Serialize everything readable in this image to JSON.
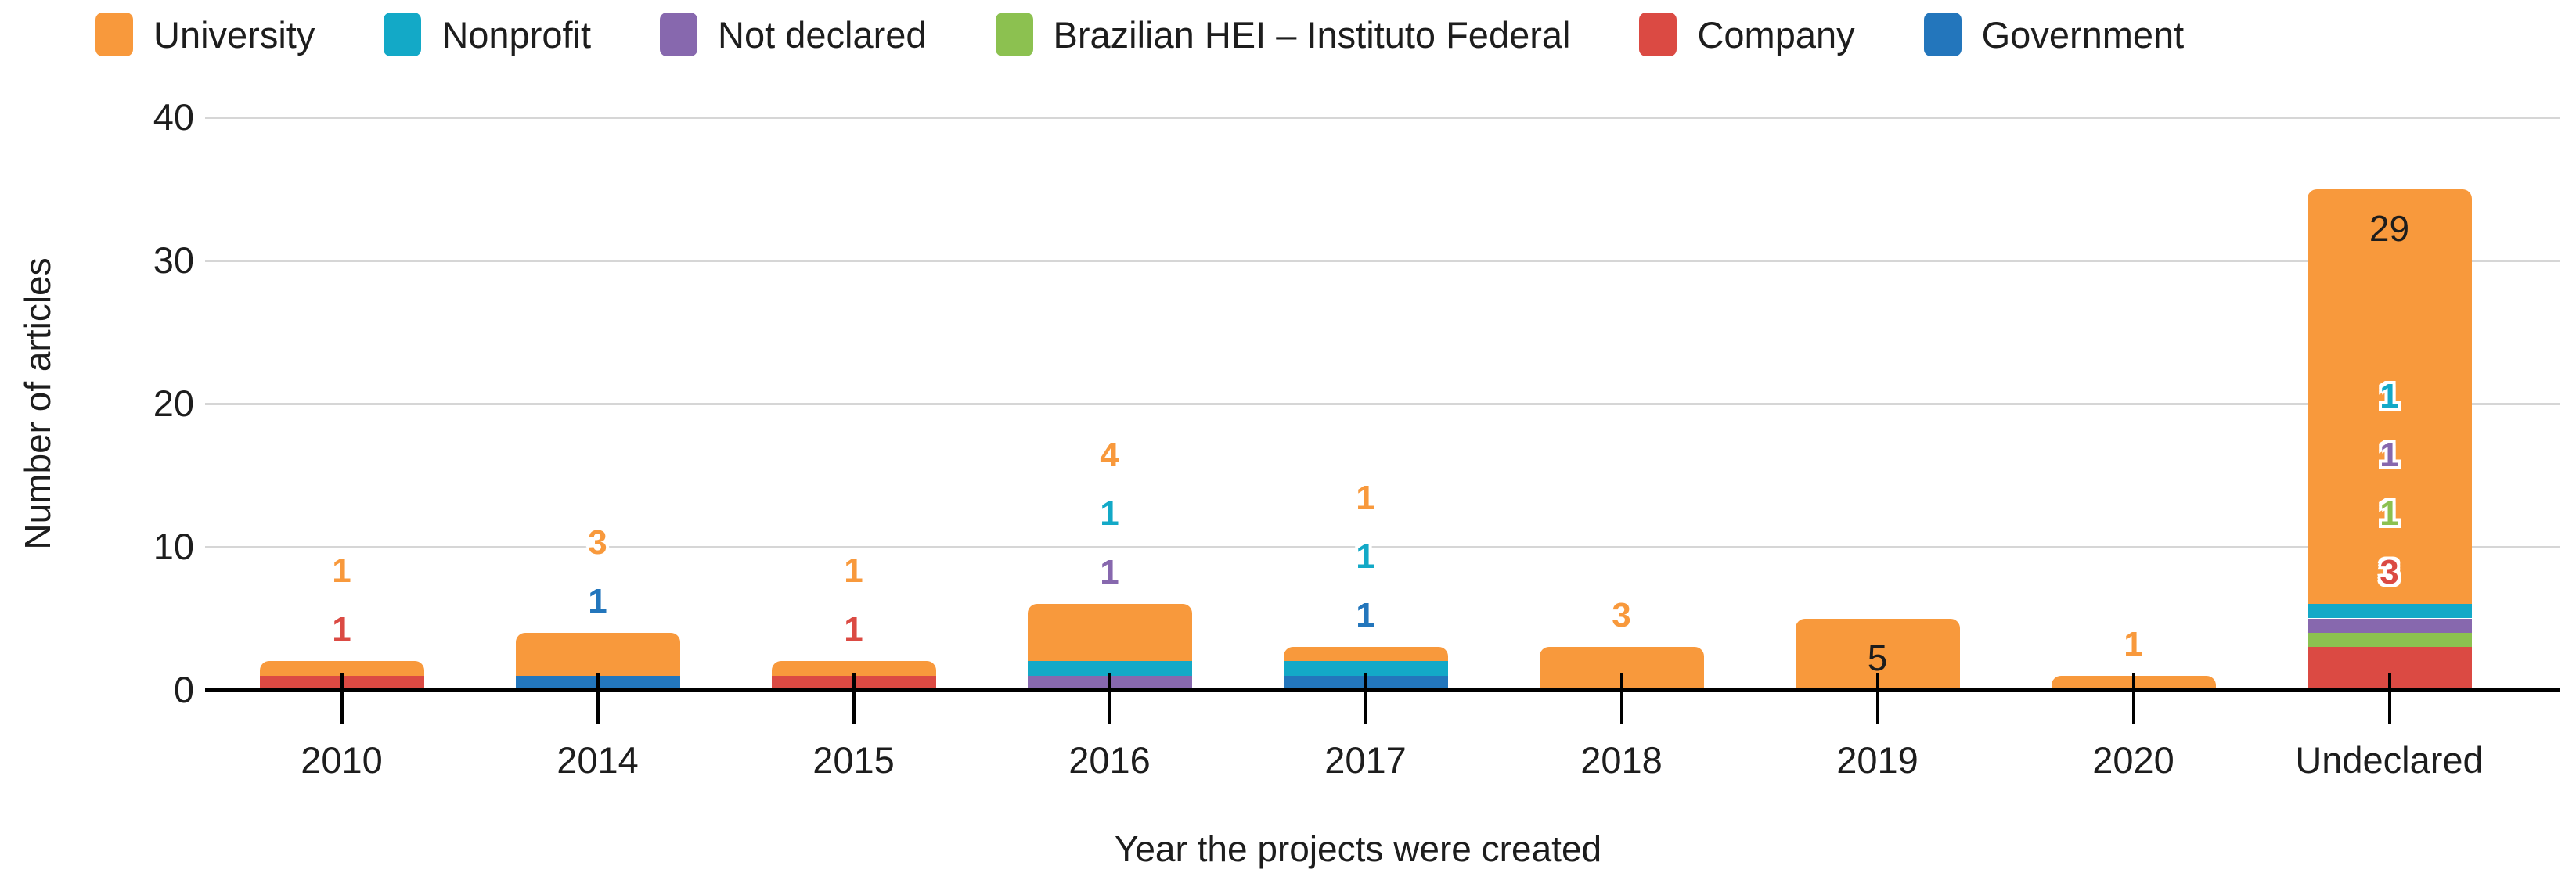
{
  "chart_data": {
    "type": "bar",
    "stacked": true,
    "categories": [
      "2010",
      "2014",
      "2015",
      "2016",
      "2017",
      "2018",
      "2019",
      "2020",
      "Undeclared"
    ],
    "series": [
      {
        "name": "University",
        "color": "#F8993C",
        "values": [
          1,
          3,
          1,
          4,
          1,
          3,
          5,
          1,
          29
        ]
      },
      {
        "name": "Nonprofit",
        "color": "#13A9C7",
        "values": [
          0,
          0,
          0,
          1,
          1,
          0,
          0,
          0,
          1
        ]
      },
      {
        "name": "Not declared",
        "color": "#8768AE",
        "values": [
          0,
          0,
          0,
          1,
          0,
          0,
          0,
          0,
          1
        ]
      },
      {
        "name": "Brazilian HEI – Instituto Federal",
        "color": "#8CC150",
        "values": [
          0,
          0,
          0,
          0,
          0,
          0,
          0,
          0,
          1
        ]
      },
      {
        "name": "Company",
        "color": "#DB4A43",
        "values": [
          1,
          0,
          1,
          0,
          0,
          0,
          0,
          0,
          3
        ]
      },
      {
        "name": "Government",
        "color": "#2376BC",
        "values": [
          0,
          1,
          0,
          0,
          1,
          0,
          0,
          0,
          0
        ]
      }
    ],
    "stack_order_bottom_to_top": [
      "Government",
      "Company",
      "Brazilian HEI – Instituto Federal",
      "Not declared",
      "Nonprofit",
      "University"
    ],
    "totals": [
      2,
      4,
      2,
      6,
      3,
      3,
      5,
      1,
      35
    ],
    "xlabel": "Year the projects were created",
    "ylabel": "Number of articles",
    "ylim": [
      0,
      40
    ],
    "yticks": [
      0,
      10,
      20,
      30,
      40
    ],
    "grid": true,
    "legend_position": "top",
    "annotation_color_inside": "#1d1d1d"
  }
}
